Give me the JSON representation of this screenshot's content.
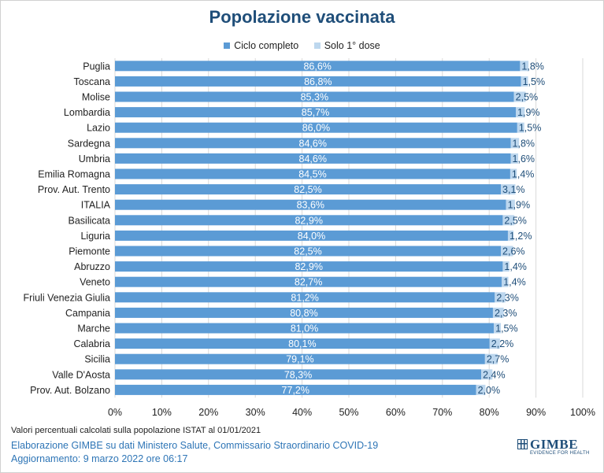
{
  "chart_data": {
    "type": "bar",
    "orientation": "horizontal",
    "stacked": true,
    "title": "Popolazione vaccinata",
    "legend_position": "top",
    "categories": [
      "Puglia",
      "Toscana",
      "Molise",
      "Lombardia",
      "Lazio",
      "Sardegna",
      "Umbria",
      "Emilia Romagna",
      "Prov. Aut. Trento",
      "ITALIA",
      "Basilicata",
      "Liguria",
      "Piemonte",
      "Abruzzo",
      "Veneto",
      "Friuli Venezia Giulia",
      "Campania",
      "Marche",
      "Calabria",
      "Sicilia",
      "Valle D'Aosta",
      "Prov. Aut. Bolzano"
    ],
    "series": [
      {
        "name": "Ciclo completo",
        "color": "#5b9bd5",
        "values": [
          86.6,
          86.8,
          85.3,
          85.7,
          86.0,
          84.6,
          84.6,
          84.5,
          82.5,
          83.6,
          82.9,
          84.0,
          82.5,
          82.9,
          82.7,
          81.2,
          80.8,
          81.0,
          80.1,
          79.1,
          78.3,
          77.2
        ],
        "labels": [
          "86,6%",
          "86,8%",
          "85,3%",
          "85,7%",
          "86,0%",
          "84,6%",
          "84,6%",
          "84,5%",
          "82,5%",
          "83,6%",
          "82,9%",
          "84,0%",
          "82,5%",
          "82,9%",
          "82,7%",
          "81,2%",
          "80,8%",
          "81,0%",
          "80,1%",
          "79,1%",
          "78,3%",
          "77,2%"
        ]
      },
      {
        "name": "Solo 1° dose",
        "color": "#bdd7ee",
        "values": [
          1.8,
          1.5,
          2.5,
          1.9,
          1.5,
          1.8,
          1.6,
          1.4,
          3.1,
          1.9,
          2.5,
          1.2,
          2.6,
          1.4,
          1.4,
          2.3,
          2.3,
          1.5,
          2.2,
          2.7,
          2.4,
          2.0
        ],
        "labels": [
          "1,8%",
          "1,5%",
          "2,5%",
          "1,9%",
          "1,5%",
          "1,8%",
          "1,6%",
          "1,4%",
          "3,1%",
          "1,9%",
          "2,5%",
          "1,2%",
          "2,6%",
          "1,4%",
          "1,4%",
          "2,3%",
          "2,3%",
          "1,5%",
          "2,2%",
          "2,7%",
          "2,4%",
          "2,0%"
        ]
      }
    ],
    "xlim": [
      0,
      100
    ],
    "xticks": [
      0,
      10,
      20,
      30,
      40,
      50,
      60,
      70,
      80,
      90,
      100
    ],
    "xtick_labels": [
      "0%",
      "10%",
      "20%",
      "30%",
      "40%",
      "50%",
      "60%",
      "70%",
      "80%",
      "90%",
      "100%"
    ],
    "grid": true
  },
  "footer": {
    "note": "Valori percentuali calcolati sulla popolazione ISTAT al 01/01/2021",
    "source": "Elaborazione GIMBE su dati Ministero Salute, Commissario Straordinario COVID-19",
    "updated": "Aggiornamento: 9 marzo 2022 ore 06:17"
  },
  "logo": {
    "name": "GIMBE",
    "tagline": "EVIDENCE FOR HEALTH"
  }
}
